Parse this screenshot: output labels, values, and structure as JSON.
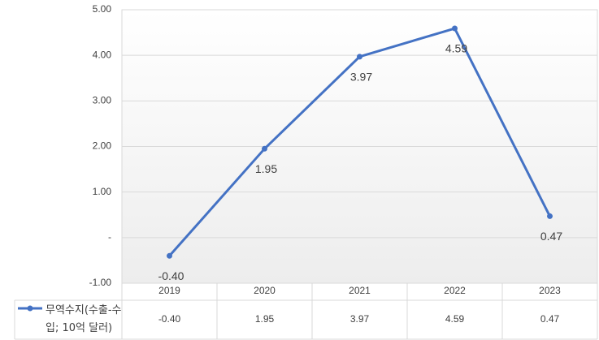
{
  "chart_data": {
    "type": "line",
    "categories": [
      "2019",
      "2020",
      "2021",
      "2022",
      "2023"
    ],
    "series": [
      {
        "name": "무역수지(수출-수입; 10억 달러)",
        "color": "#4472c4",
        "values": [
          -0.4,
          1.95,
          3.97,
          4.59,
          0.47
        ],
        "value_labels": [
          "-0.40",
          "1.95",
          "3.97",
          "4.59",
          "0.47"
        ]
      }
    ],
    "ylim": [
      -1,
      5
    ],
    "yticks": [
      {
        "value": -1,
        "label": "-1.00"
      },
      {
        "value": 0,
        "label": "-"
      },
      {
        "value": 1,
        "label": "1.00"
      },
      {
        "value": 2,
        "label": "2.00"
      },
      {
        "value": 3,
        "label": "3.00"
      },
      {
        "value": 4,
        "label": "4.00"
      },
      {
        "value": 5,
        "label": "5.00"
      }
    ],
    "grid": true
  }
}
